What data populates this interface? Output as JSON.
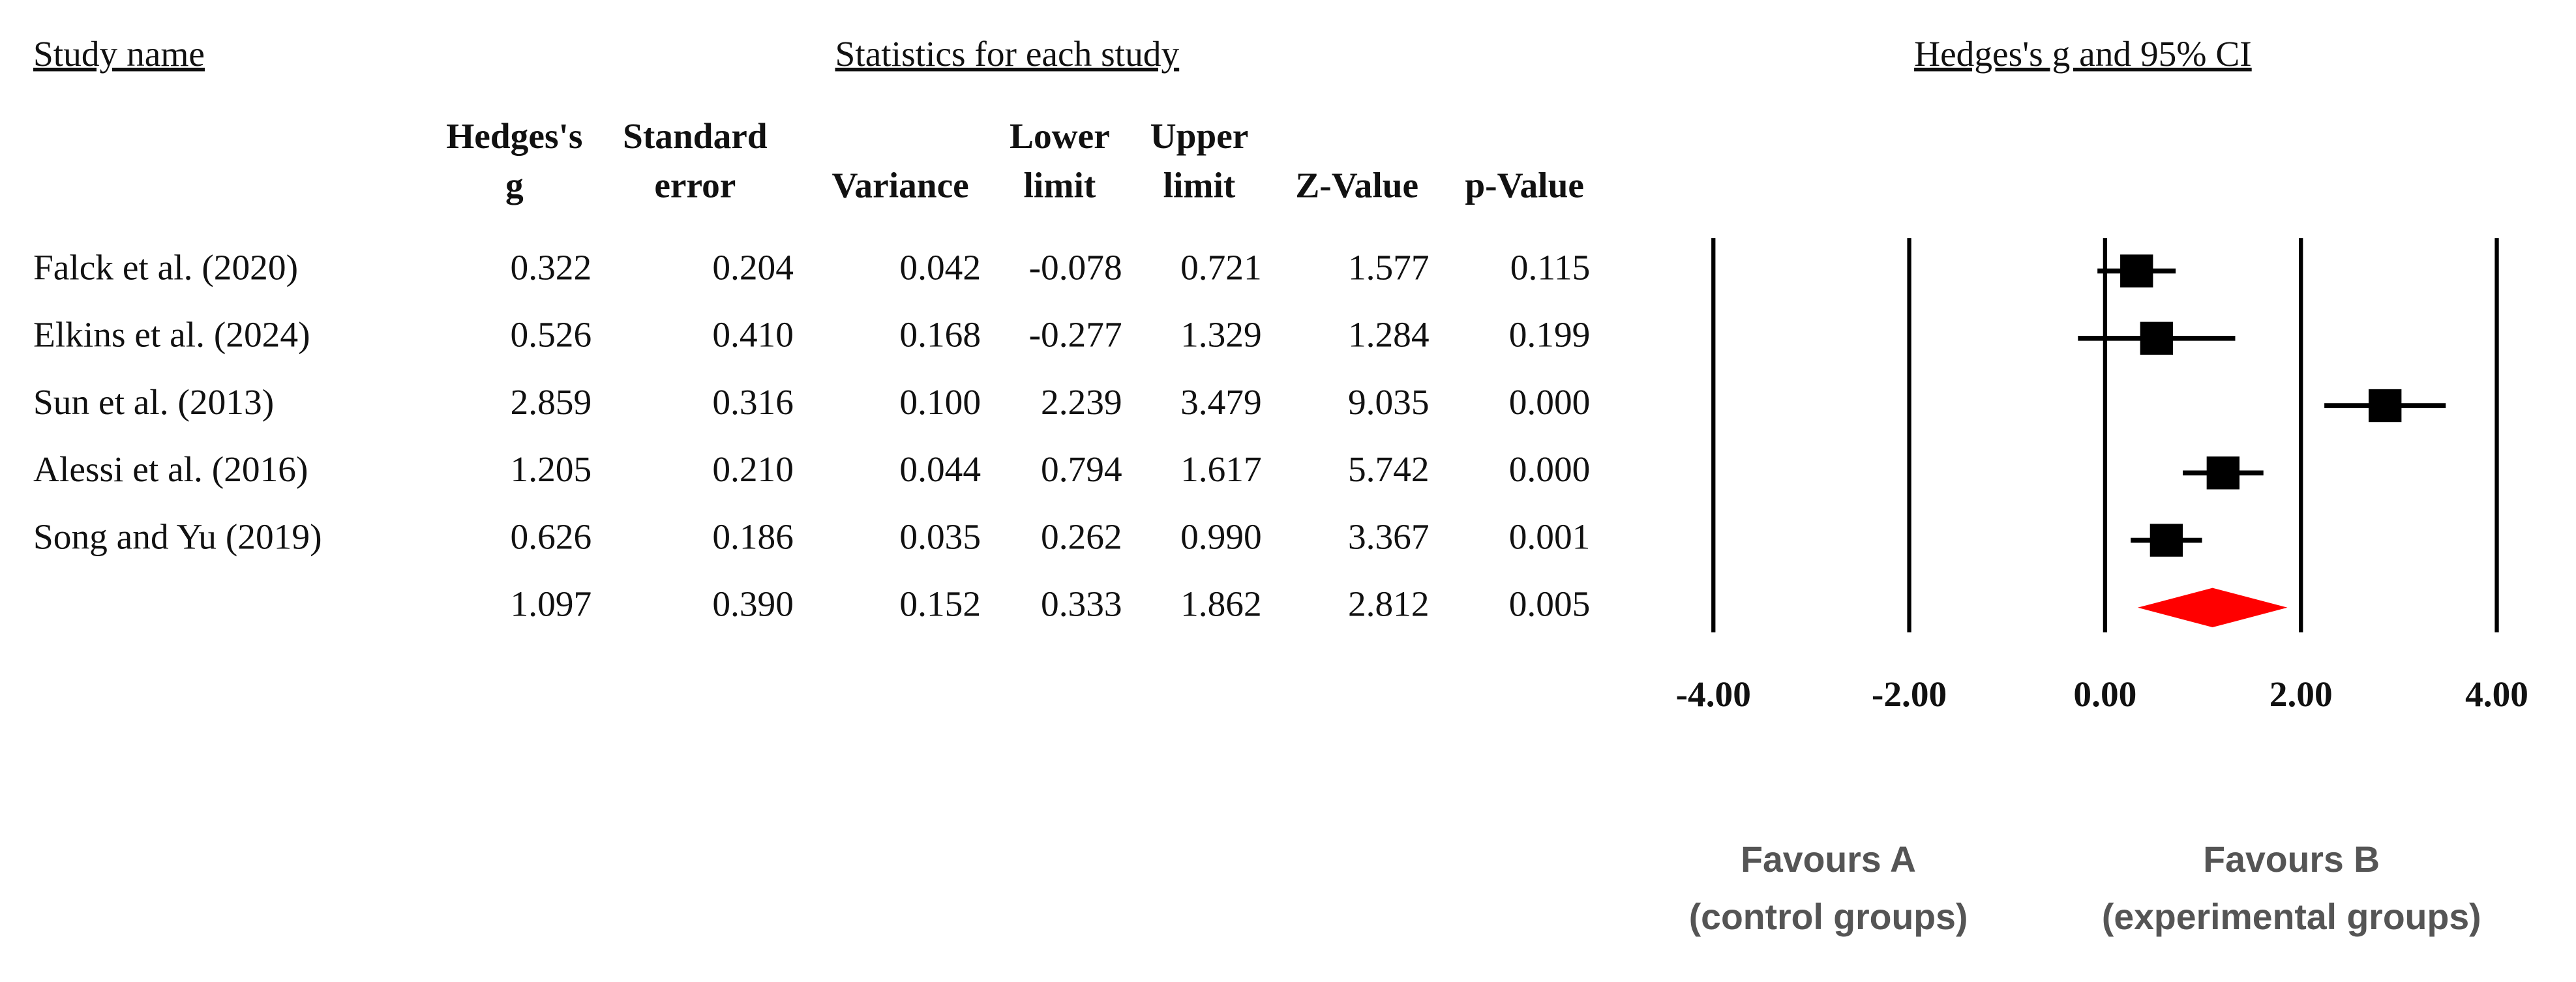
{
  "chart_data": {
    "type": "forest",
    "study_header": "Study name",
    "stats_header": "Statistics for each study",
    "plot_header": "Hedges's g and 95% CI",
    "studies": [
      "Falck et al. (2020)",
      "Elkins et al. (2024)",
      "Sun et al. (2013)",
      "Alessi et al. (2016)",
      "Song and Yu (2019)",
      null
    ],
    "columns": [
      {
        "name": [
          "Hedges's",
          "g"
        ],
        "values": [
          0.322,
          0.526,
          2.859,
          1.205,
          0.626,
          1.097
        ],
        "value_labels": [
          "0.322",
          "0.526",
          "2.859",
          "1.205",
          "0.626",
          "1.097"
        ]
      },
      {
        "name": [
          "Standard",
          "error"
        ],
        "values": [
          "0.204",
          "0.410",
          "0.316",
          "0.210",
          "0.186",
          "0.390"
        ]
      },
      {
        "name": [
          "Variance"
        ],
        "values": [
          "0.042",
          "0.168",
          "0.100",
          "0.044",
          "0.035",
          "0.152"
        ]
      },
      {
        "name": [
          "Lower",
          "limit"
        ],
        "values": [
          -0.078,
          -0.277,
          2.239,
          0.794,
          0.262,
          0.333
        ],
        "value_labels": [
          "-0.078",
          "-0.277",
          "2.239",
          "0.794",
          "0.262",
          "0.333"
        ]
      },
      {
        "name": [
          "Upper",
          "limit"
        ],
        "values": [
          0.721,
          1.329,
          3.479,
          1.617,
          0.99,
          1.862
        ],
        "value_labels": [
          "0.721",
          "1.329",
          "3.479",
          "1.617",
          "0.990",
          "1.862"
        ]
      },
      {
        "name": [
          "Z-Value"
        ],
        "values": [
          "1.577",
          "1.284",
          "9.035",
          "5.742",
          "3.367",
          "2.812"
        ]
      },
      {
        "name": [
          "p-Value"
        ],
        "values": [
          "0.115",
          "0.199",
          "0.000",
          "0.000",
          "0.001",
          "0.005"
        ]
      }
    ],
    "xlim": [
      -4,
      4
    ],
    "xticks": [
      {
        "value": -4,
        "label": "-4.00"
      },
      {
        "value": -2,
        "label": "-2.00"
      },
      {
        "value": 0,
        "label": "0.00"
      },
      {
        "value": 2,
        "label": "2.00"
      },
      {
        "value": 4,
        "label": "4.00"
      }
    ],
    "grid": true,
    "color": "#000000",
    "summary_color": "#ff0000",
    "annotations": [
      [
        "Favours A",
        "(control groups)"
      ],
      [
        "Favours B",
        "(experimental groups)"
      ]
    ]
  }
}
